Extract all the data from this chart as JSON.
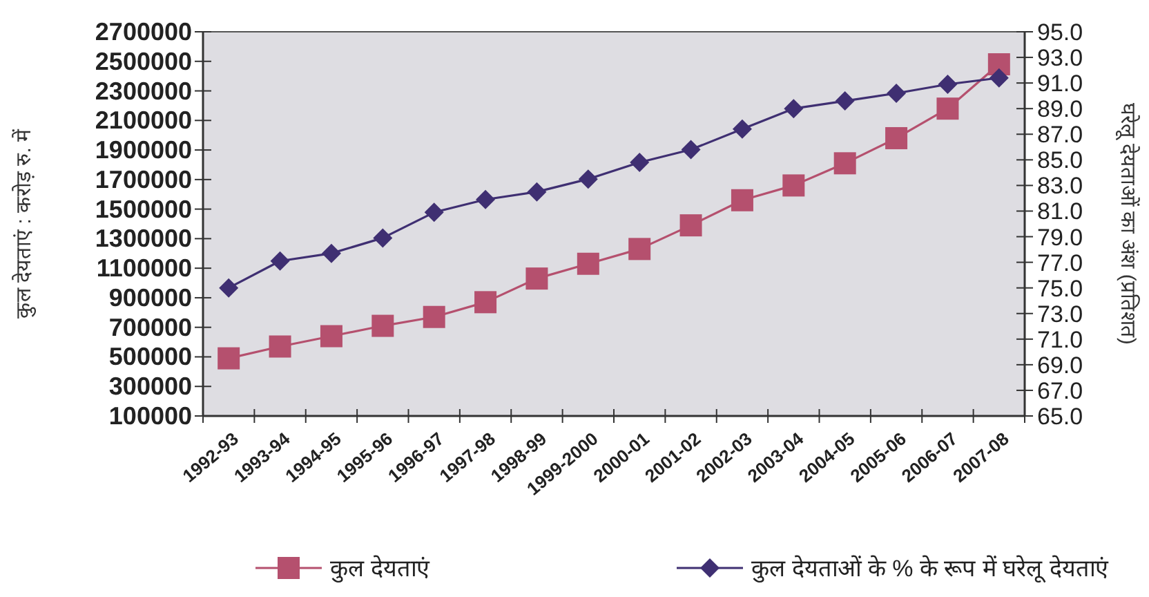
{
  "chart_data": {
    "type": "line",
    "categories": [
      "1992-93",
      "1993-94",
      "1994-95",
      "1995-96",
      "1996-97",
      "1997-98",
      "1998-99",
      "1999-2000",
      "2000-01",
      "2001-02",
      "2002-03",
      "2003-04",
      "2004-05",
      "2005-06",
      "2006-07",
      "2007-08"
    ],
    "series": [
      {
        "name": "कुल देयताएं",
        "color": "#b5506e",
        "marker": "square",
        "values": [
          490000,
          570000,
          640000,
          710000,
          770000,
          870000,
          1030000,
          1130000,
          1230000,
          1390000,
          1560000,
          1660000,
          1810000,
          1980000,
          2180000,
          2480000
        ]
      },
      {
        "name": "कुल देयताओं के % के रूप में घरेलू देयताएं",
        "color": "#3f2f72",
        "marker": "diamond",
        "axis": "y2",
        "values": [
          75.0,
          77.1,
          77.7,
          78.9,
          80.9,
          81.9,
          82.5,
          83.5,
          84.8,
          85.8,
          87.4,
          89.0,
          89.6,
          90.2,
          90.9,
          91.4
        ]
      }
    ],
    "ylabel": "कुल देयताएं : करोड़ रु. में",
    "y2label": "घरेलू देयताओं का अंश (प्रतिशत)",
    "ylim": [
      100000,
      2700000
    ],
    "yticks": [
      100000,
      300000,
      500000,
      700000,
      900000,
      1100000,
      1300000,
      1500000,
      1700000,
      1900000,
      2100000,
      2300000,
      2500000,
      2700000
    ],
    "y2lim": [
      65,
      95
    ],
    "y2ticks": [
      {
        "value": 65,
        "label": "65.0"
      },
      {
        "value": 67,
        "label": "67.0"
      },
      {
        "value": 69,
        "label": "69.0"
      },
      {
        "value": 71,
        "label": "71.0"
      },
      {
        "value": 73,
        "label": "73.0"
      },
      {
        "value": 75,
        "label": "75.0"
      },
      {
        "value": 77,
        "label": "77.0"
      },
      {
        "value": 79,
        "label": "79.0"
      },
      {
        "value": 81,
        "label": "81.0"
      },
      {
        "value": 83,
        "label": "83.0"
      },
      {
        "value": 85,
        "label": "85.0"
      },
      {
        "value": 87,
        "label": "87.0"
      },
      {
        "value": 89,
        "label": "89.0"
      },
      {
        "value": 91,
        "label": "91.0"
      },
      {
        "value": 93,
        "label": "93.0"
      },
      {
        "value": 95,
        "label": "95.0"
      }
    ],
    "grid": false,
    "legend": "bottom",
    "line_style": "solid"
  }
}
